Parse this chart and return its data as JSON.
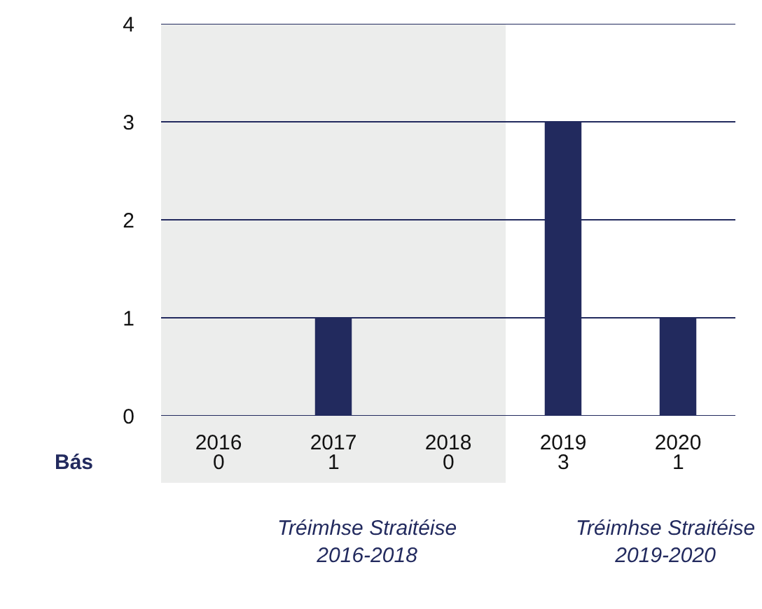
{
  "chart_data": {
    "type": "bar",
    "categories": [
      "2016",
      "2017",
      "2018",
      "2019",
      "2020"
    ],
    "series": [
      {
        "name": "Bás",
        "color": "#222a5e",
        "values": [
          0,
          1,
          0,
          3,
          1
        ]
      }
    ],
    "ylim": [
      0,
      4
    ],
    "yticks": [
      0,
      1,
      2,
      3,
      4
    ],
    "grid": "y",
    "legend": false,
    "data_labels": true,
    "bands": [
      {
        "axis": "x",
        "from": "2016",
        "to": "2018",
        "color": "#ecedec"
      }
    ],
    "annotations": [
      "Tréimhse Straitéise\n2016-2018",
      "Tréimhse Straitéise\n2019-2020"
    ]
  }
}
